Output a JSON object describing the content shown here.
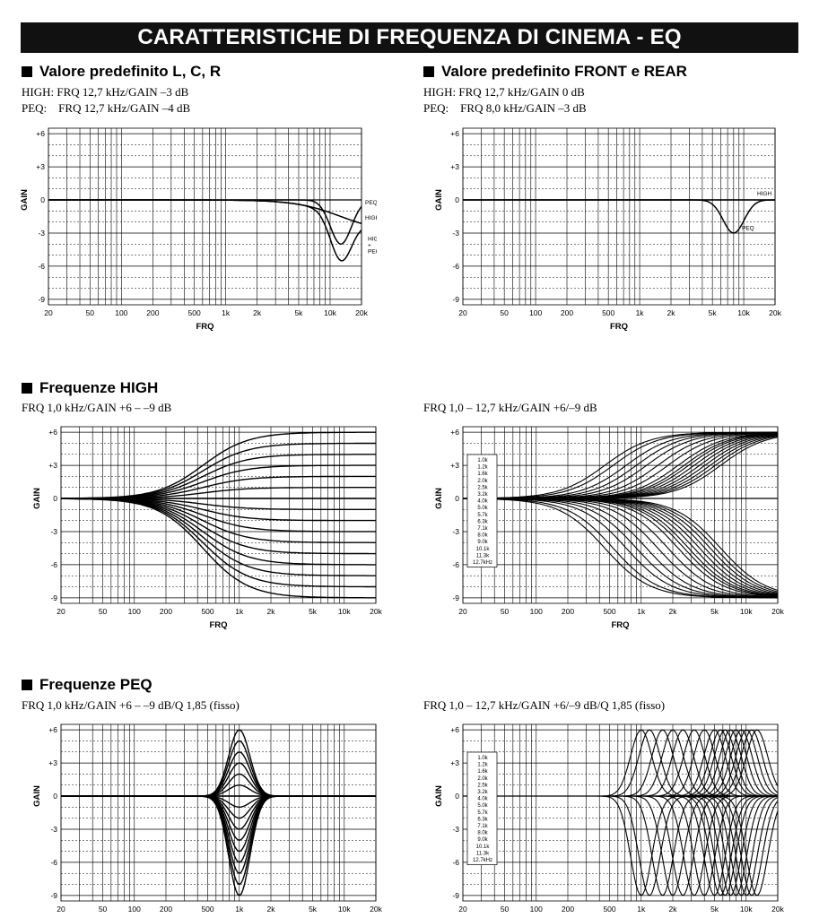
{
  "page": {
    "title": "CARATTERISTICHE DI FREQUENZA DI CINEMA - EQ",
    "section1_left_heading": "Valore predefinito L, C, R",
    "section1_left_lines": [
      "HIGH: FRQ 12,7 kHz/GAIN –3 dB",
      "PEQ:    FRQ 12,7 kHz/GAIN –4 dB"
    ],
    "section1_right_heading": "Valore predefinito FRONT e REAR",
    "section1_right_lines": [
      "HIGH: FRQ 12,7 kHz/GAIN 0 dB",
      "PEQ:    FRQ 8,0 kHz/GAIN –3 dB"
    ],
    "section2_heading": "Frequenze HIGH",
    "section2_left_line": "FRQ 1,0 kHz/GAIN +6 – –9 dB",
    "section2_right_line": "FRQ 1,0 – 12,7 kHz/GAIN +6/–9 dB",
    "section3_heading": "Frequenze PEQ",
    "section3_left_line": "FRQ 1,0 kHz/GAIN +6 – –9 dB/Q 1,85 (fisso)",
    "section3_right_line": "FRQ 1,0 – 12,7 kHz/GAIN +6/–9 dB/Q 1,85 (fisso)"
  },
  "axes": {
    "xlabel": "FRQ",
    "ylabel": "GAIN",
    "x_ticks": [
      "20",
      "50",
      "100",
      "200",
      "500",
      "1k",
      "2k",
      "5k",
      "10k",
      "20k"
    ],
    "y_ticks": [
      "+6",
      "+3",
      "0",
      "-3",
      "-6",
      "-9"
    ],
    "xlim_hz": [
      20,
      20000
    ],
    "ylim_db": [
      -9.5,
      6.5
    ],
    "x_scale": "log"
  },
  "frequency_legend": [
    "1.0k",
    "1.2k",
    "1.6k",
    "2.0k",
    "2.5k",
    "3.2k",
    "4.0k",
    "5.0k",
    "5.7k",
    "6.3k",
    "7.1k",
    "8.0k",
    "9.0k",
    "10.1k",
    "11.3k",
    "12.7kHz"
  ],
  "chart_data": [
    {
      "type": "line",
      "title": "Valore predefinito L, C, R",
      "series": [
        {
          "name": "HIGH",
          "kind": "shelf",
          "freq_hz": 12700,
          "gain_db": -3
        },
        {
          "name": "PEQ",
          "kind": "peak",
          "freq_hz": 12700,
          "gain_db": -4,
          "q": 1.85
        },
        {
          "name": "HIGH + PEQ",
          "kind": "combined",
          "freq_hz": 12700,
          "gain_db": -7
        }
      ],
      "annotations": [
        "PEQ",
        "HIGH",
        "HIGH\n+\nPEQ"
      ]
    },
    {
      "type": "line",
      "title": "Valore predefinito FRONT e REAR",
      "series": [
        {
          "name": "HIGH",
          "kind": "shelf",
          "freq_hz": 12700,
          "gain_db": 0
        },
        {
          "name": "PEQ",
          "kind": "peak",
          "freq_hz": 8000,
          "gain_db": -3,
          "q": 1.85
        }
      ],
      "annotations": [
        "HIGH",
        "PEQ"
      ]
    },
    {
      "type": "line",
      "title": "Frequenze HIGH",
      "kind": "shelf",
      "freq_hz": 1000,
      "gains_db": [
        6,
        5,
        4,
        3,
        2,
        1,
        0,
        -1,
        -2,
        -3,
        -4,
        -5,
        -6,
        -7,
        -8,
        -9
      ]
    },
    {
      "type": "line",
      "title": "Frequenze HIGH (sweep)",
      "kind": "shelf",
      "freqs_hz": [
        1000,
        1200,
        1600,
        2000,
        2500,
        3200,
        4000,
        5000,
        5700,
        6300,
        7100,
        8000,
        9000,
        10100,
        11300,
        12700
      ],
      "gains_db": [
        6,
        -9
      ]
    },
    {
      "type": "line",
      "title": "Frequenze PEQ",
      "kind": "peak",
      "freq_hz": 1000,
      "q": 1.85,
      "gains_db": [
        6,
        5,
        4,
        3,
        2,
        1,
        0,
        -1,
        -2,
        -3,
        -4,
        -5,
        -6,
        -7,
        -8,
        -9
      ]
    },
    {
      "type": "line",
      "title": "Frequenze PEQ (sweep)",
      "kind": "peak",
      "q": 1.85,
      "freqs_hz": [
        1000,
        1200,
        1600,
        2000,
        2500,
        3200,
        4000,
        5000,
        5700,
        6300,
        7100,
        8000,
        9000,
        10100,
        11300,
        12700
      ],
      "gains_db": [
        6,
        -9
      ]
    }
  ]
}
